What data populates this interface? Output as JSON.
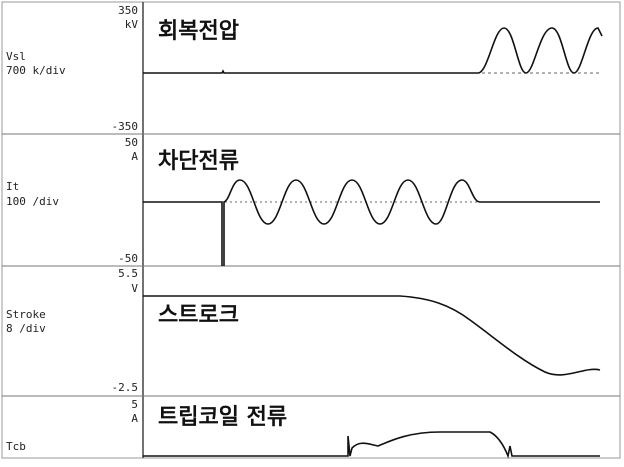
{
  "chart_data": [
    {
      "type": "line",
      "title": "회복전압",
      "channel": "Vsl",
      "scale": "700 k/div",
      "y_top": "350",
      "y_unit": "kV",
      "y_bottom": "-350",
      "ylim": [
        -350,
        350
      ],
      "series": [
        {
          "x": [
            0,
            0.35,
            0.4,
            0.45,
            0.5,
            0.55,
            0.6,
            0.65,
            0.7,
            0.75,
            0.8,
            0.85,
            0.88,
            0.9,
            0.95,
            1.0
          ],
          "y": [
            0,
            0,
            0,
            0,
            0,
            0,
            0,
            0,
            0,
            0.4,
            0,
            0.3,
            0,
            0.4,
            0.1,
            0
          ]
        }
      ]
    },
    {
      "type": "line",
      "title": "차단전류",
      "channel": "It",
      "scale": "100 /div",
      "y_top": "50",
      "y_unit": "A",
      "y_bottom": "-50",
      "ylim": [
        -50,
        50
      ]
    },
    {
      "type": "line",
      "title": "스트로크",
      "channel": "Stroke",
      "scale": "8 /div",
      "y_top": "5.5",
      "y_unit": "V",
      "y_bottom": "-2.5",
      "ylim": [
        -2.5,
        5.5
      ]
    },
    {
      "type": "line",
      "title": "트립코일 전류",
      "channel": "Tcb",
      "scale": "",
      "y_top": "5",
      "y_unit": "A",
      "y_bottom": "",
      "ylim": [
        null,
        5
      ]
    }
  ]
}
